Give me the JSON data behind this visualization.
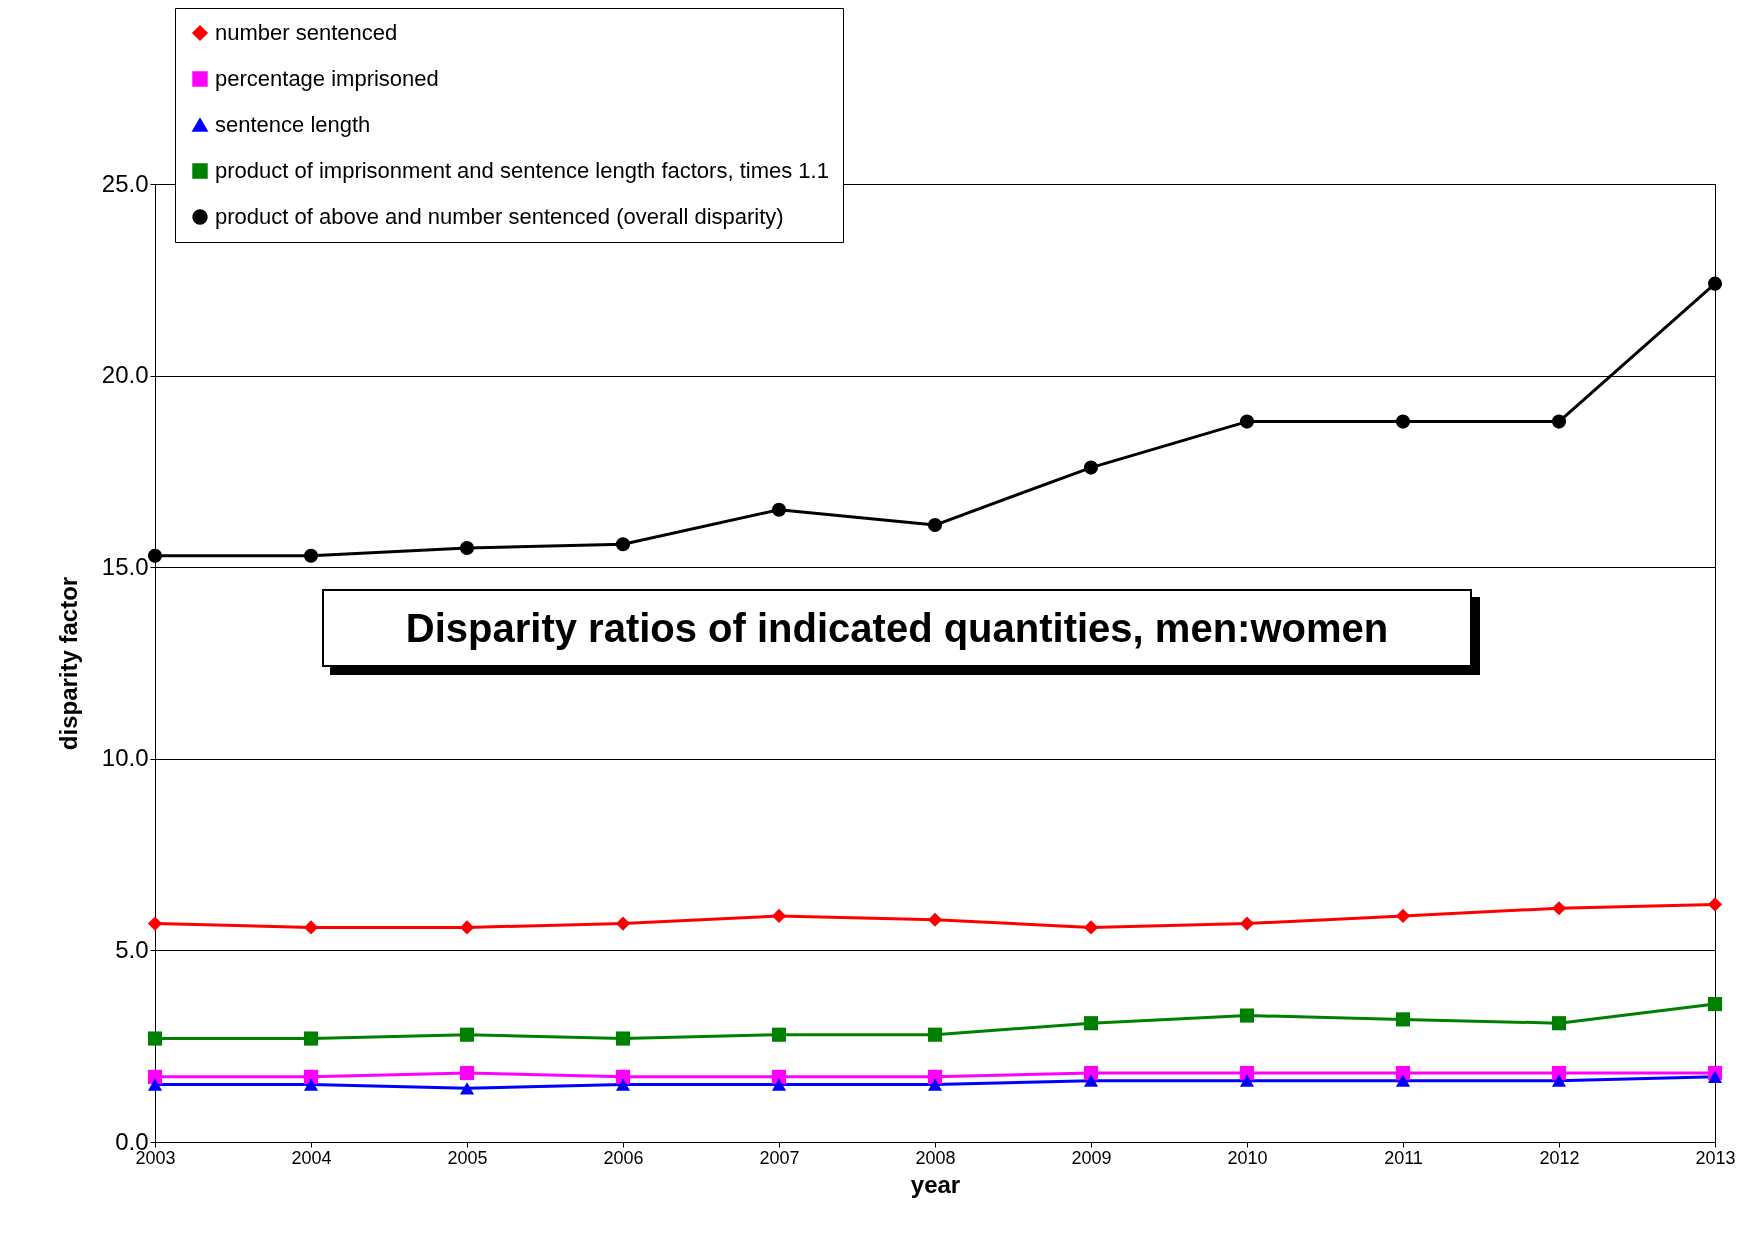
{
  "chart_data": {
    "type": "line",
    "title": "Disparity ratios of indicated quantities, men:women",
    "xlabel": "year",
    "ylabel": "disparity factor",
    "x": [
      2003,
      2004,
      2005,
      2006,
      2007,
      2008,
      2009,
      2010,
      2011,
      2012,
      2013
    ],
    "xlim": [
      2003,
      2013
    ],
    "xticks": [
      2003,
      2004,
      2005,
      2006,
      2007,
      2008,
      2009,
      2010,
      2011,
      2012,
      2013
    ],
    "ylim": [
      0,
      25
    ],
    "yticks": [
      {
        "value": 0,
        "label": "0.0"
      },
      {
        "value": 5,
        "label": "5.0"
      },
      {
        "value": 10,
        "label": "10.0"
      },
      {
        "value": 15,
        "label": "15.0"
      },
      {
        "value": 20,
        "label": "20.0"
      },
      {
        "value": 25,
        "label": "25.0"
      }
    ],
    "grid": "y",
    "legend": "top left",
    "series": [
      {
        "name": "number sentenced",
        "color": "#ff0000",
        "marker": "diamond",
        "values": [
          5.7,
          5.6,
          5.6,
          5.7,
          5.9,
          5.8,
          5.6,
          5.7,
          5.9,
          6.1,
          6.2
        ]
      },
      {
        "name": "percentage imprisoned",
        "color": "#ff00ff",
        "marker": "square",
        "values": [
          1.7,
          1.7,
          1.8,
          1.7,
          1.7,
          1.7,
          1.8,
          1.8,
          1.8,
          1.8,
          1.8
        ]
      },
      {
        "name": "sentence length",
        "color": "#0000ff",
        "marker": "triangle",
        "values": [
          1.5,
          1.5,
          1.4,
          1.5,
          1.5,
          1.5,
          1.6,
          1.6,
          1.6,
          1.6,
          1.7
        ]
      },
      {
        "name": "product of imprisonment and sentence length factors, times 1.1",
        "color": "#008000",
        "marker": "square",
        "values": [
          2.7,
          2.7,
          2.8,
          2.7,
          2.8,
          2.8,
          3.1,
          3.3,
          3.2,
          3.1,
          3.6
        ]
      },
      {
        "name": "product of above and number sentenced (overall disparity)",
        "color": "#000000",
        "marker": "circle",
        "values": [
          15.3,
          15.3,
          15.5,
          15.6,
          16.5,
          16.1,
          17.6,
          18.8,
          18.8,
          18.8,
          22.4
        ]
      }
    ]
  }
}
